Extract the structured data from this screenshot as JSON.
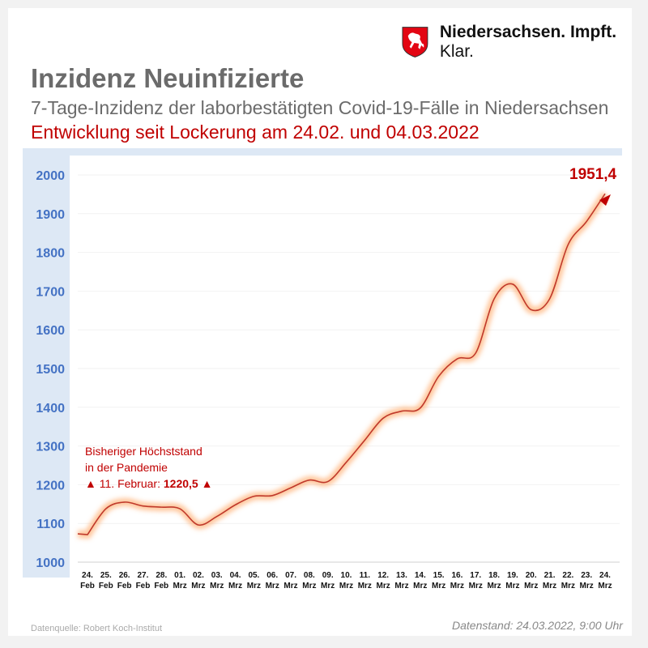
{
  "header": {
    "title": "Inzidenz Neuinfizierte",
    "subtitle": "7-Tage-Inzidenz der laborbestätigten Covid-19-Fälle in Niedersachsen",
    "subtitle2": "Entwicklung seit Lockerung am 24.02. und 04.03.2022"
  },
  "logo": {
    "text_part1": "Niedersachsen.",
    "text_part2": "Impft.",
    "text_part3": "Klar.",
    "icon": "lower-saxony-horse-shield-icon"
  },
  "annotation": {
    "line1": "Bisheriger Höchststand",
    "line2": "in der Pandemie",
    "line3_prefix": "11. Februar:",
    "line3_value": "1220,5",
    "marker_icon": "triangle-up-icon"
  },
  "last_value_label": "1951,4",
  "footer": {
    "source": "Datenquelle:  Robert Koch-Institut",
    "data_date": "Datenstand: 24.03.2022, 9:00 Uhr"
  },
  "colors": {
    "line": "#c0392b",
    "glow": "#ff8c42",
    "axis_band": "#dde8f5",
    "axis_text": "#4472c4",
    "accent": "#c00000"
  },
  "chart_data": {
    "type": "line",
    "title": "Inzidenz Neuinfizierte",
    "ylim": [
      1000,
      2000
    ],
    "yticks": [
      "1000",
      "1100",
      "1200",
      "1300",
      "1400",
      "1500",
      "1600",
      "1700",
      "1800",
      "1900",
      "2000"
    ],
    "grid": true,
    "categories": [
      [
        "24.",
        "Feb"
      ],
      [
        "25.",
        "Feb"
      ],
      [
        "26.",
        "Feb"
      ],
      [
        "27.",
        "Feb"
      ],
      [
        "28.",
        "Feb"
      ],
      [
        "01.",
        "Mrz"
      ],
      [
        "02.",
        "Mrz"
      ],
      [
        "03.",
        "Mrz"
      ],
      [
        "04.",
        "Mrz"
      ],
      [
        "05.",
        "Mrz"
      ],
      [
        "06.",
        "Mrz"
      ],
      [
        "07.",
        "Mrz"
      ],
      [
        "08.",
        "Mrz"
      ],
      [
        "09.",
        "Mrz"
      ],
      [
        "10.",
        "Mrz"
      ],
      [
        "11.",
        "Mrz"
      ],
      [
        "12.",
        "Mrz"
      ],
      [
        "13.",
        "Mrz"
      ],
      [
        "14.",
        "Mrz"
      ],
      [
        "15.",
        "Mrz"
      ],
      [
        "16.",
        "Mrz"
      ],
      [
        "17.",
        "Mrz"
      ],
      [
        "18.",
        "Mrz"
      ],
      [
        "19.",
        "Mrz"
      ],
      [
        "20.",
        "Mrz"
      ],
      [
        "21.",
        "Mrz"
      ],
      [
        "22.",
        "Mrz"
      ],
      [
        "23.",
        "Mrz"
      ],
      [
        "24.",
        "Mrz"
      ]
    ],
    "values": [
      1071,
      1138,
      1155,
      1145,
      1142,
      1138,
      1096,
      1118,
      1148,
      1170,
      1172,
      1192,
      1212,
      1208,
      1258,
      1315,
      1372,
      1390,
      1398,
      1480,
      1525,
      1540,
      1680,
      1718,
      1652,
      1680,
      1820,
      1880,
      1951.4
    ]
  }
}
